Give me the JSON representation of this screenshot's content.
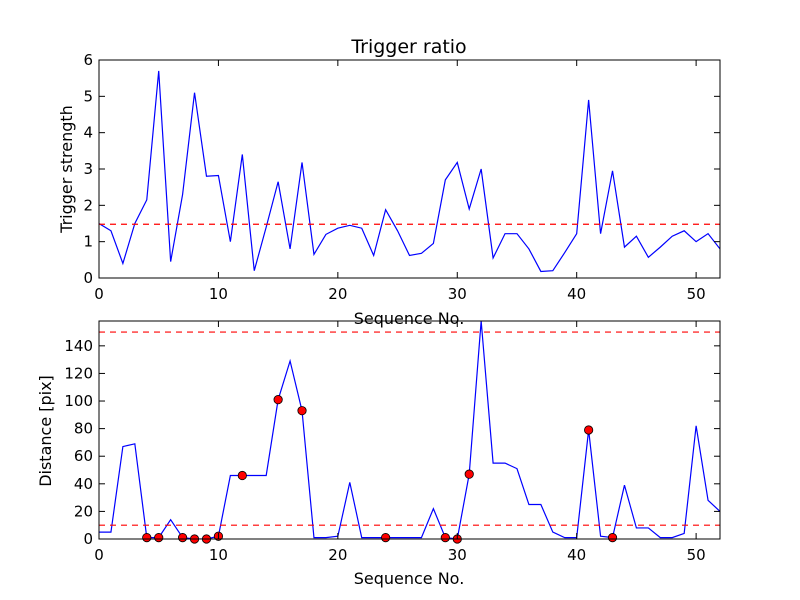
{
  "chart_data": [
    {
      "type": "line",
      "title": "Trigger ratio",
      "xlabel": "Sequence No.",
      "ylabel": "Trigger strength",
      "xlim": [
        0,
        52
      ],
      "ylim": [
        0,
        6
      ],
      "xticks": [
        0,
        10,
        20,
        30,
        40,
        50
      ],
      "yticks": [
        0,
        1,
        2,
        3,
        4,
        5,
        6
      ],
      "grid": false,
      "series": [
        {
          "color": "#0000ff",
          "x": [
            0,
            1,
            2,
            3,
            4,
            5,
            6,
            7,
            8,
            9,
            10,
            11,
            12,
            13,
            14,
            15,
            16,
            17,
            18,
            19,
            20,
            21,
            22,
            23,
            24,
            25,
            26,
            27,
            28,
            29,
            30,
            31,
            32,
            33,
            34,
            35,
            36,
            37,
            38,
            39,
            40,
            41,
            42,
            43,
            44,
            45,
            46,
            47,
            48,
            49,
            50,
            51,
            52
          ],
          "y": [
            1.5,
            1.3,
            0.4,
            1.5,
            2.15,
            5.7,
            0.45,
            2.3,
            5.1,
            2.8,
            2.82,
            1.0,
            3.4,
            0.2,
            1.4,
            2.65,
            0.8,
            3.18,
            0.65,
            1.2,
            1.37,
            1.45,
            1.37,
            0.62,
            1.88,
            1.3,
            0.62,
            0.68,
            0.95,
            2.7,
            3.18,
            1.9,
            3.0,
            0.55,
            1.22,
            1.22,
            0.8,
            0.18,
            0.2,
            0.7,
            1.22,
            4.9,
            1.22,
            2.95,
            0.85,
            1.15,
            0.57,
            0.85,
            1.15,
            1.3,
            1.0,
            1.22,
            0.8
          ]
        }
      ],
      "hlines": [
        {
          "y": 1.48,
          "color": "#ff0000",
          "style": "dashed"
        }
      ]
    },
    {
      "type": "line",
      "title": "",
      "xlabel": "Sequence No.",
      "ylabel": "Distance [pix]",
      "xlim": [
        0,
        52
      ],
      "ylim": [
        0,
        158
      ],
      "xticks": [
        0,
        10,
        20,
        30,
        40,
        50
      ],
      "yticks": [
        0,
        20,
        40,
        60,
        80,
        100,
        120,
        140
      ],
      "grid": false,
      "series": [
        {
          "color": "#0000ff",
          "x": [
            0,
            1,
            2,
            3,
            4,
            5,
            6,
            7,
            8,
            9,
            10,
            11,
            12,
            13,
            14,
            15,
            16,
            17,
            18,
            19,
            20,
            21,
            22,
            23,
            24,
            25,
            26,
            27,
            28,
            29,
            30,
            31,
            32,
            33,
            34,
            35,
            36,
            37,
            38,
            39,
            40,
            41,
            42,
            43,
            44,
            45,
            46,
            47,
            48,
            49,
            50,
            51,
            52
          ],
          "y": [
            5,
            5,
            67,
            69,
            1,
            1,
            14,
            1,
            0,
            0,
            2,
            46,
            46,
            46,
            46,
            101,
            129,
            93,
            1,
            1,
            2,
            41,
            1,
            1,
            1,
            1,
            1,
            1,
            22,
            1,
            0,
            47,
            158,
            55,
            55,
            51,
            25,
            25,
            5,
            1,
            1,
            79,
            2,
            1,
            39,
            8,
            8,
            1,
            1,
            4,
            82,
            28,
            20
          ]
        },
        {
          "name": "",
          "type": "scatter",
          "color": "#ff0000",
          "x": [
            4,
            5,
            7,
            8,
            9,
            10,
            12,
            15,
            17,
            24,
            29,
            30,
            31,
            41,
            43
          ],
          "y": [
            1,
            1,
            1,
            0,
            0,
            2,
            46,
            101,
            93,
            1,
            1,
            0,
            47,
            79,
            1
          ]
        }
      ],
      "hlines": [
        {
          "y": 150,
          "color": "#ff0000",
          "style": "dashed"
        },
        {
          "y": 10,
          "color": "#ff0000",
          "style": "dashed"
        }
      ]
    }
  ]
}
